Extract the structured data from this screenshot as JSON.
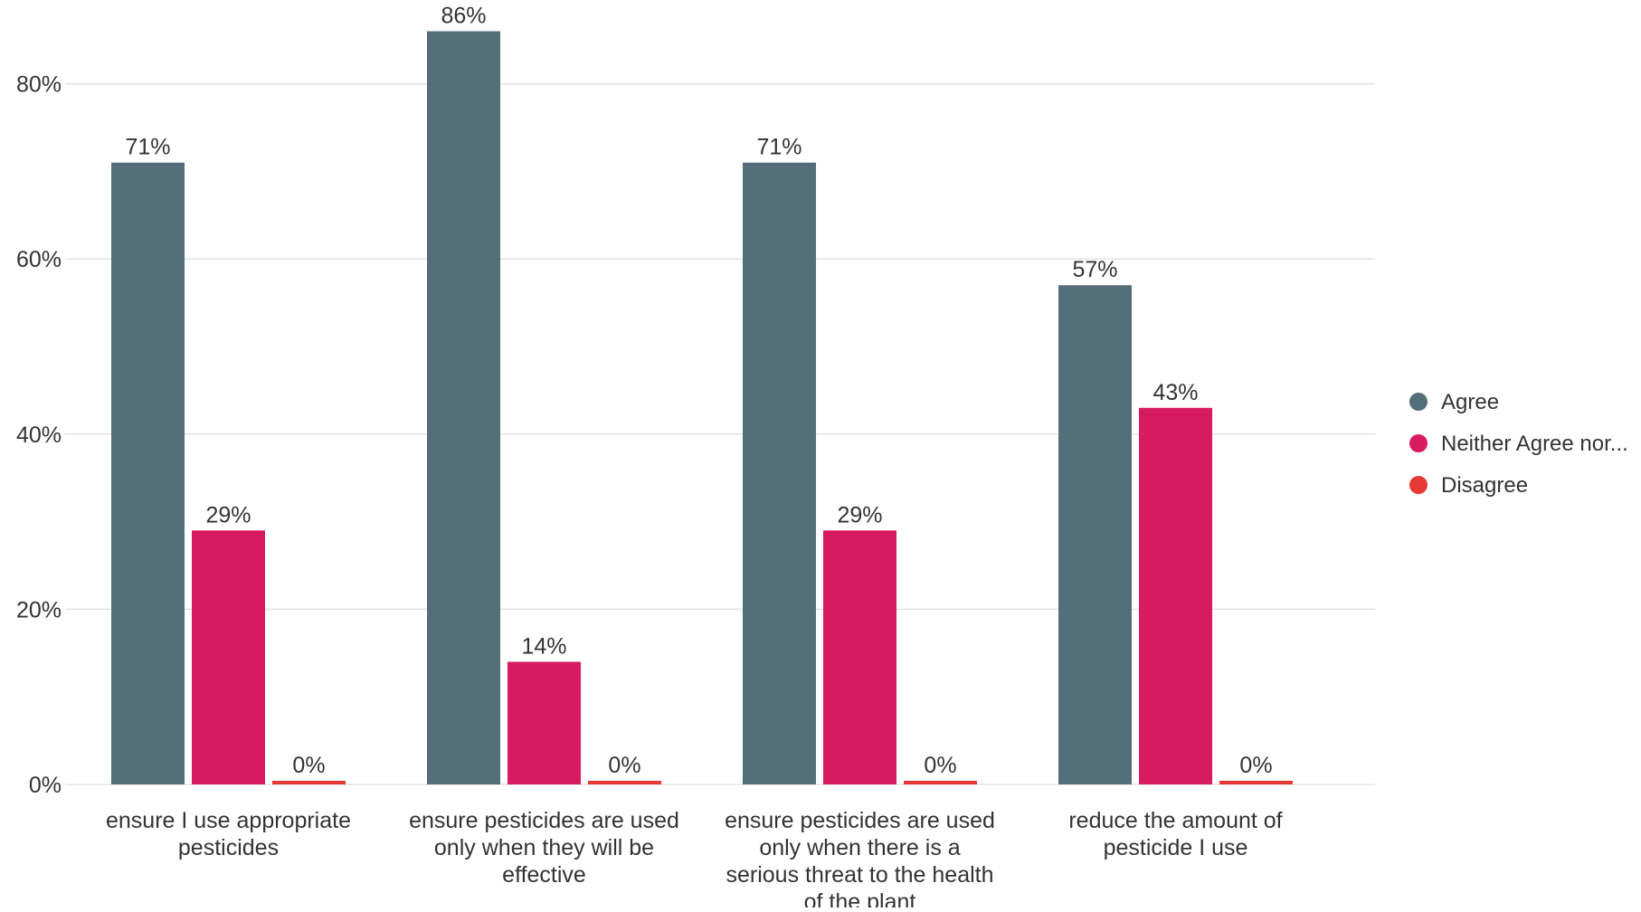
{
  "chart_data": {
    "type": "bar",
    "title": "",
    "xlabel": "",
    "ylabel": "",
    "ylim": [
      0,
      86
    ],
    "y_ticks": [
      0,
      20,
      40,
      60,
      80
    ],
    "y_tick_labels": [
      "0%",
      "20%",
      "40%",
      "60%",
      "80%"
    ],
    "grid": true,
    "legend_position": "right",
    "categories": [
      [
        "ensure I use appropriate",
        "pesticides"
      ],
      [
        "ensure pesticides are used",
        "only when they will be",
        "effective"
      ],
      [
        "ensure pesticides are used",
        "only when there is a",
        "serious threat to the health",
        "of the plant"
      ],
      [
        "reduce the amount of",
        "pesticide I use"
      ]
    ],
    "series": [
      {
        "name": "Agree",
        "color": "#546e7a",
        "values": [
          71,
          86,
          71,
          57
        ],
        "labels": [
          "71%",
          "86%",
          "71%",
          "57%"
        ]
      },
      {
        "name": "Neither Agree nor...",
        "color": "#d81b60",
        "values": [
          29,
          14,
          29,
          43
        ],
        "labels": [
          "29%",
          "14%",
          "29%",
          "43%"
        ]
      },
      {
        "name": "Disagree",
        "color": "#e53935",
        "values": [
          0,
          0,
          0,
          0
        ],
        "labels": [
          "0%",
          "0%",
          "0%",
          "0%"
        ]
      }
    ]
  }
}
